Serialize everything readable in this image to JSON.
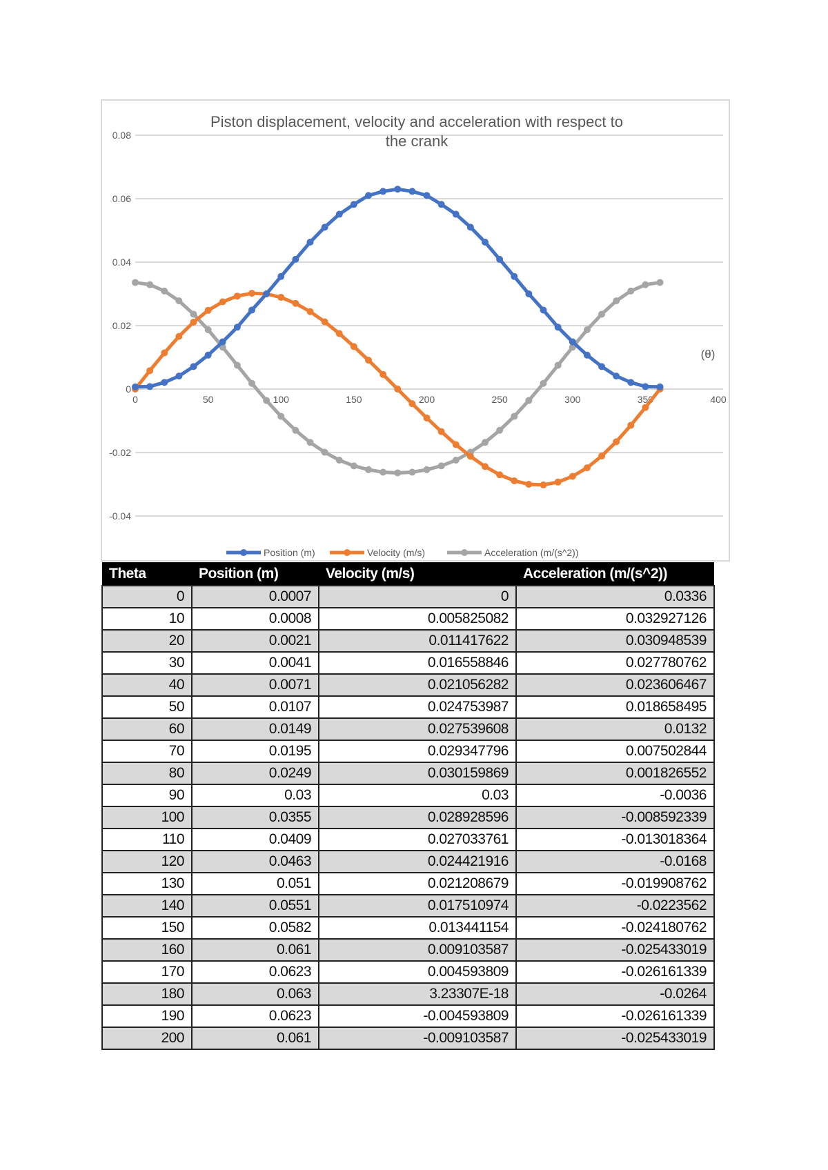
{
  "chart_data": {
    "type": "line",
    "title": "Piston displacement, velocity and acceleration with respect to the crank",
    "xlabel": "(θ)",
    "ylabel": "",
    "xlim": [
      0,
      400
    ],
    "ylim": [
      -0.04,
      0.08
    ],
    "x_ticks": [
      "0",
      "50",
      "100",
      "150",
      "200",
      "250",
      "300",
      "350",
      "400"
    ],
    "y_ticks": [
      "0.08",
      "0.06",
      "0.04",
      "0.02",
      "0",
      "-0.02",
      "-0.04"
    ],
    "grid": true,
    "legend_position": "bottom",
    "x": [
      0,
      10,
      20,
      30,
      40,
      50,
      60,
      70,
      80,
      90,
      100,
      110,
      120,
      130,
      140,
      150,
      160,
      170,
      180,
      190,
      200,
      210,
      220,
      230,
      240,
      250,
      260,
      270,
      280,
      290,
      300,
      310,
      320,
      330,
      340,
      350,
      360
    ],
    "series": [
      {
        "name": "Position (m)",
        "color": "#4472c4",
        "values": [
          0.0007,
          0.0008,
          0.0021,
          0.0041,
          0.0071,
          0.0107,
          0.0149,
          0.0195,
          0.0249,
          0.03,
          0.0355,
          0.0409,
          0.0463,
          0.051,
          0.0551,
          0.0582,
          0.061,
          0.0623,
          0.063,
          0.0623,
          0.061,
          0.0582,
          0.0551,
          0.051,
          0.0463,
          0.0409,
          0.0355,
          0.03,
          0.0249,
          0.0195,
          0.0149,
          0.0107,
          0.0071,
          0.0041,
          0.0021,
          0.0008,
          0.0007
        ]
      },
      {
        "name": "Velocity (m/s)",
        "color": "#ed7d31",
        "values": [
          0,
          0.0058,
          0.0114,
          0.0166,
          0.0211,
          0.0248,
          0.0275,
          0.0293,
          0.0302,
          0.03,
          0.0289,
          0.027,
          0.0244,
          0.0212,
          0.0175,
          0.0134,
          0.0091,
          0.0046,
          0,
          -0.0046,
          -0.0091,
          -0.0134,
          -0.0175,
          -0.0212,
          -0.0244,
          -0.027,
          -0.0289,
          -0.03,
          -0.0302,
          -0.0293,
          -0.0275,
          -0.0248,
          -0.0211,
          -0.0166,
          -0.0114,
          -0.0058,
          0
        ]
      },
      {
        "name": "Acceleration (m/(s^2))",
        "color": "#a5a5a5",
        "values": [
          0.0336,
          0.0329,
          0.0309,
          0.0278,
          0.0236,
          0.0187,
          0.0132,
          0.0075,
          0.0018,
          -0.0036,
          -0.0086,
          -0.013,
          -0.0168,
          -0.0199,
          -0.0224,
          -0.0242,
          -0.0254,
          -0.0262,
          -0.0264,
          -0.0262,
          -0.0254,
          -0.0242,
          -0.0224,
          -0.0199,
          -0.0168,
          -0.013,
          -0.0086,
          -0.0036,
          0.0018,
          0.0075,
          0.0132,
          0.0187,
          0.0236,
          0.0278,
          0.0309,
          0.0329,
          0.0336
        ]
      }
    ]
  },
  "table": {
    "headers": [
      "Theta",
      "Position (m)",
      "Velocity (m/s)",
      "Acceleration (m/(s^2))"
    ],
    "rows": [
      [
        "0",
        "0.0007",
        "0",
        "0.0336"
      ],
      [
        "10",
        "0.0008",
        "0.005825082",
        "0.032927126"
      ],
      [
        "20",
        "0.0021",
        "0.011417622",
        "0.030948539"
      ],
      [
        "30",
        "0.0041",
        "0.016558846",
        "0.027780762"
      ],
      [
        "40",
        "0.0071",
        "0.021056282",
        "0.023606467"
      ],
      [
        "50",
        "0.0107",
        "0.024753987",
        "0.018658495"
      ],
      [
        "60",
        "0.0149",
        "0.027539608",
        "0.0132"
      ],
      [
        "70",
        "0.0195",
        "0.029347796",
        "0.007502844"
      ],
      [
        "80",
        "0.0249",
        "0.030159869",
        "0.001826552"
      ],
      [
        "90",
        "0.03",
        "0.03",
        "-0.0036"
      ],
      [
        "100",
        "0.0355",
        "0.028928596",
        "-0.008592339"
      ],
      [
        "110",
        "0.0409",
        "0.027033761",
        "-0.013018364"
      ],
      [
        "120",
        "0.0463",
        "0.024421916",
        "-0.0168"
      ],
      [
        "130",
        "0.051",
        "0.021208679",
        "-0.019908762"
      ],
      [
        "140",
        "0.0551",
        "0.017510974",
        "-0.0223562"
      ],
      [
        "150",
        "0.0582",
        "0.013441154",
        "-0.024180762"
      ],
      [
        "160",
        "0.061",
        "0.009103587",
        "-0.025433019"
      ],
      [
        "170",
        "0.0623",
        "0.004593809",
        "-0.026161339"
      ],
      [
        "180",
        "0.063",
        "3.23307E-18",
        "-0.0264"
      ],
      [
        "190",
        "0.0623",
        "-0.004593809",
        "-0.026161339"
      ],
      [
        "200",
        "0.061",
        "-0.009103587",
        "-0.025433019"
      ]
    ]
  }
}
